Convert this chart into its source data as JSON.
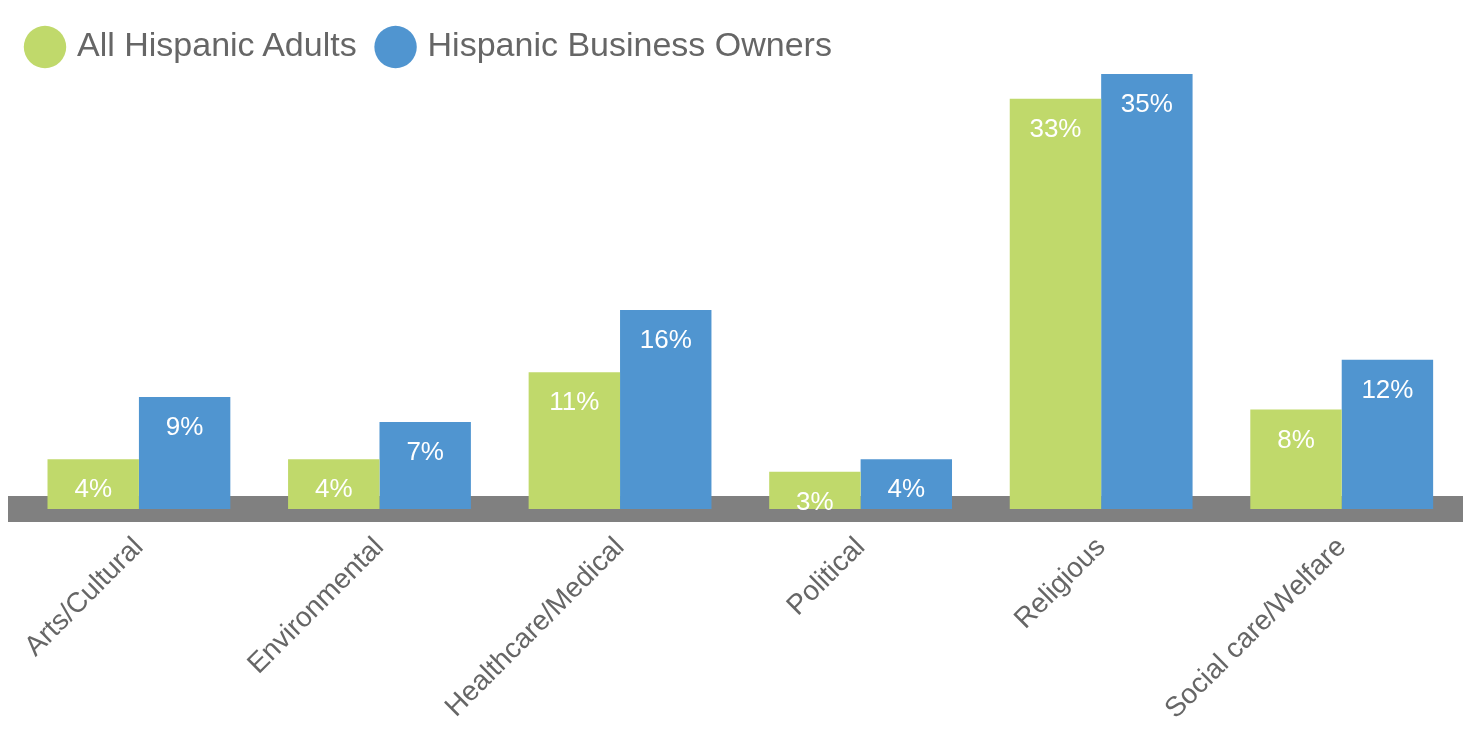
{
  "chart_data": {
    "type": "bar",
    "categories": [
      "Arts/Cultural",
      "Environmental",
      "Healthcare/Medical",
      "Political",
      "Religious",
      "Social care/Welfare"
    ],
    "series": [
      {
        "name": "All Hispanic Adults",
        "color": "#c0d96b",
        "values": [
          4,
          4,
          11,
          3,
          33,
          8
        ],
        "value_labels": [
          "4%",
          "4%",
          "11%",
          "3%",
          "33%",
          "8%"
        ]
      },
      {
        "name": "Hispanic Business Owners",
        "color": "#5095d0",
        "values": [
          9,
          7,
          16,
          4,
          35,
          12
        ],
        "value_labels": [
          "9%",
          "7%",
          "16%",
          "4%",
          "35%",
          "12%"
        ]
      }
    ],
    "legend": "top left",
    "grid": false
  }
}
